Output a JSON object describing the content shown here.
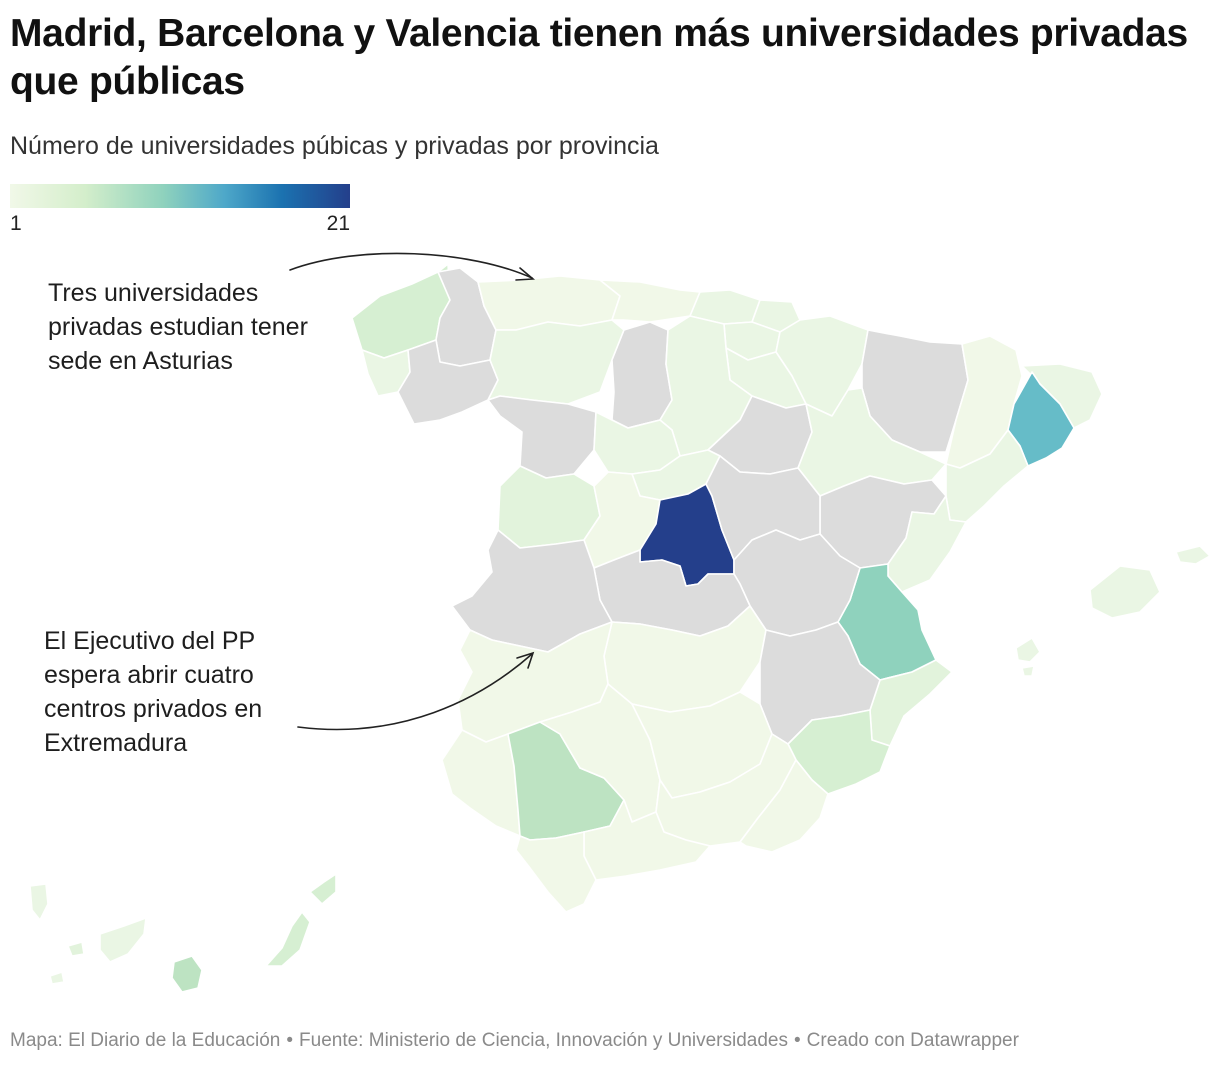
{
  "title": "Madrid, Barcelona y Valencia tienen más universidades privadas que públicas",
  "subtitle": "Número de universidades púbicas y privadas por provincia",
  "legend": {
    "min_label": "1",
    "max_label": "21",
    "scale_colors": [
      "#f1f8e8",
      "#d4eecb",
      "#8fd2bd",
      "#4ea8c9",
      "#1b72b0",
      "#243f8b"
    ],
    "no_data_color": "#dcdcdc"
  },
  "annotations": {
    "asturias": "Tres universidades privadas estudian tener sede en Asturias",
    "extremadura": "El Ejecutivo del PP espera abrir cuatro centros privados en Extremadura"
  },
  "footer": {
    "map_credit": "Mapa: El Diario de la Educación",
    "source": "Fuente: Ministerio de Ciencia, Innovación y Universidades",
    "tool": "Creado con Datawrapper",
    "separator": "•"
  }
}
